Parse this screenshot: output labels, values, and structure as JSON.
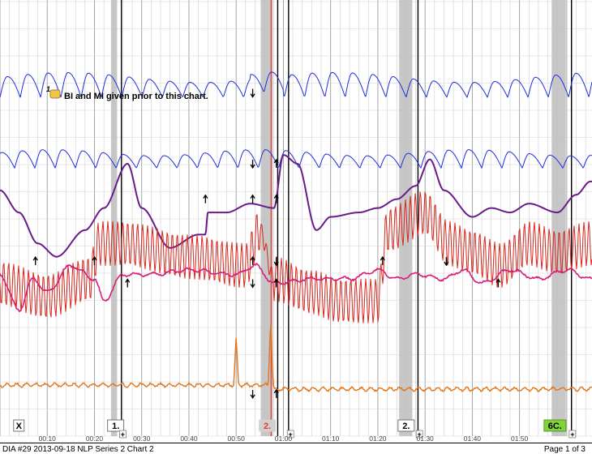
{
  "chart_data": {
    "type": "line",
    "title": "DIA #29 2013-09-18 NLP Series 2 Chart 2",
    "x_unit": "seconds (mm:ss)",
    "xlim": [
      0,
      125
    ],
    "time_ticks": [
      {
        "t": 10,
        "label": "00:10"
      },
      {
        "t": 20,
        "label": "00:20"
      },
      {
        "t": 30,
        "label": "00:30"
      },
      {
        "t": 40,
        "label": "00:40"
      },
      {
        "t": 50,
        "label": "00:50"
      },
      {
        "t": 60,
        "label": "01:00"
      },
      {
        "t": 70,
        "label": "01:10"
      },
      {
        "t": 80,
        "label": "01:20"
      },
      {
        "t": 90,
        "label": "01:30"
      },
      {
        "t": 100,
        "label": "01:40"
      },
      {
        "t": 110,
        "label": "01:50"
      }
    ],
    "shaded_intervals": [
      [
        23.5,
        24.8
      ],
      [
        55.2,
        57.8
      ],
      [
        84.5,
        87.3
      ],
      [
        116.8,
        119.8
      ]
    ],
    "event_marks": [
      {
        "label": "X",
        "t": 4,
        "style": "plain"
      },
      {
        "label": "1.",
        "t": 24.5,
        "style": "plain"
      },
      {
        "label": "2.",
        "t": 56.6,
        "style": "red"
      },
      {
        "label": "2.",
        "t": 86.0,
        "style": "plain"
      },
      {
        "label": "6C.",
        "t": 117.5,
        "style": "green"
      }
    ],
    "plus_marks": [
      {
        "t": 26.0,
        "label": "+"
      },
      {
        "t": 61.5,
        "label": "+"
      },
      {
        "t": 88.8,
        "label": "+"
      },
      {
        "t": 121.2,
        "label": "+"
      }
    ],
    "vertical_lines": [
      25.7,
      58.8,
      61.1,
      88.5,
      121.0
    ],
    "annotation": {
      "number": "1",
      "text": "BI and MI given prior to this chart."
    },
    "arrows": [
      {
        "t": 53.5,
        "channel": 0,
        "dir": "down"
      },
      {
        "t": 53.5,
        "channel": 1,
        "dir": "down"
      },
      {
        "t": 58.5,
        "channel": 1,
        "dir": "up"
      },
      {
        "t": 43.5,
        "channel": 2,
        "dir": "up"
      },
      {
        "t": 53.5,
        "channel": 2,
        "dir": "up"
      },
      {
        "t": 58.5,
        "channel": 2,
        "dir": "up"
      },
      {
        "t": 7.5,
        "channel": 3,
        "dir": "up"
      },
      {
        "t": 20.0,
        "channel": 3,
        "dir": "up"
      },
      {
        "t": 53.5,
        "channel": 3,
        "dir": "up"
      },
      {
        "t": 58.5,
        "channel": 3,
        "dir": "down"
      },
      {
        "t": 81.0,
        "channel": 3,
        "dir": "up"
      },
      {
        "t": 94.5,
        "channel": 3,
        "dir": "down"
      },
      {
        "t": 27.0,
        "channel": 4,
        "dir": "up"
      },
      {
        "t": 53.5,
        "channel": 4,
        "dir": "down"
      },
      {
        "t": 58.5,
        "channel": 4,
        "dir": "up"
      },
      {
        "t": 105.5,
        "channel": 4,
        "dir": "up"
      },
      {
        "t": 53.5,
        "channel": 5,
        "dir": "down"
      },
      {
        "t": 58.5,
        "channel": 5,
        "dir": "up"
      }
    ],
    "series": [
      {
        "name": "upper-pneumo",
        "color": "#1f2fdc",
        "baseline_pct": 22,
        "amp_pct": 4.5,
        "period_s": 4.3
      },
      {
        "name": "lower-pneumo",
        "color": "#1f2fdc",
        "baseline_pct": 38,
        "amp_pct": 3.5,
        "period_s": 4.3
      },
      {
        "name": "eda",
        "color": "#6a1a8a",
        "baseline_pct": 50,
        "amp_pct": 6
      },
      {
        "name": "cardio",
        "color": "#d8251b",
        "baseline_pct": 63,
        "amp_pct": 5
      },
      {
        "name": "cardio-mean",
        "color": "#d81e78",
        "baseline_pct": 62,
        "amp_pct": 2
      },
      {
        "name": "motion-sensor",
        "color": "#e2761b",
        "baseline_pct": 87,
        "amp_pct": 1
      }
    ]
  },
  "footer": {
    "left": "DIA #29 2013-09-18 NLP Series 2 Chart 2",
    "right": "Page 1 of 3"
  }
}
